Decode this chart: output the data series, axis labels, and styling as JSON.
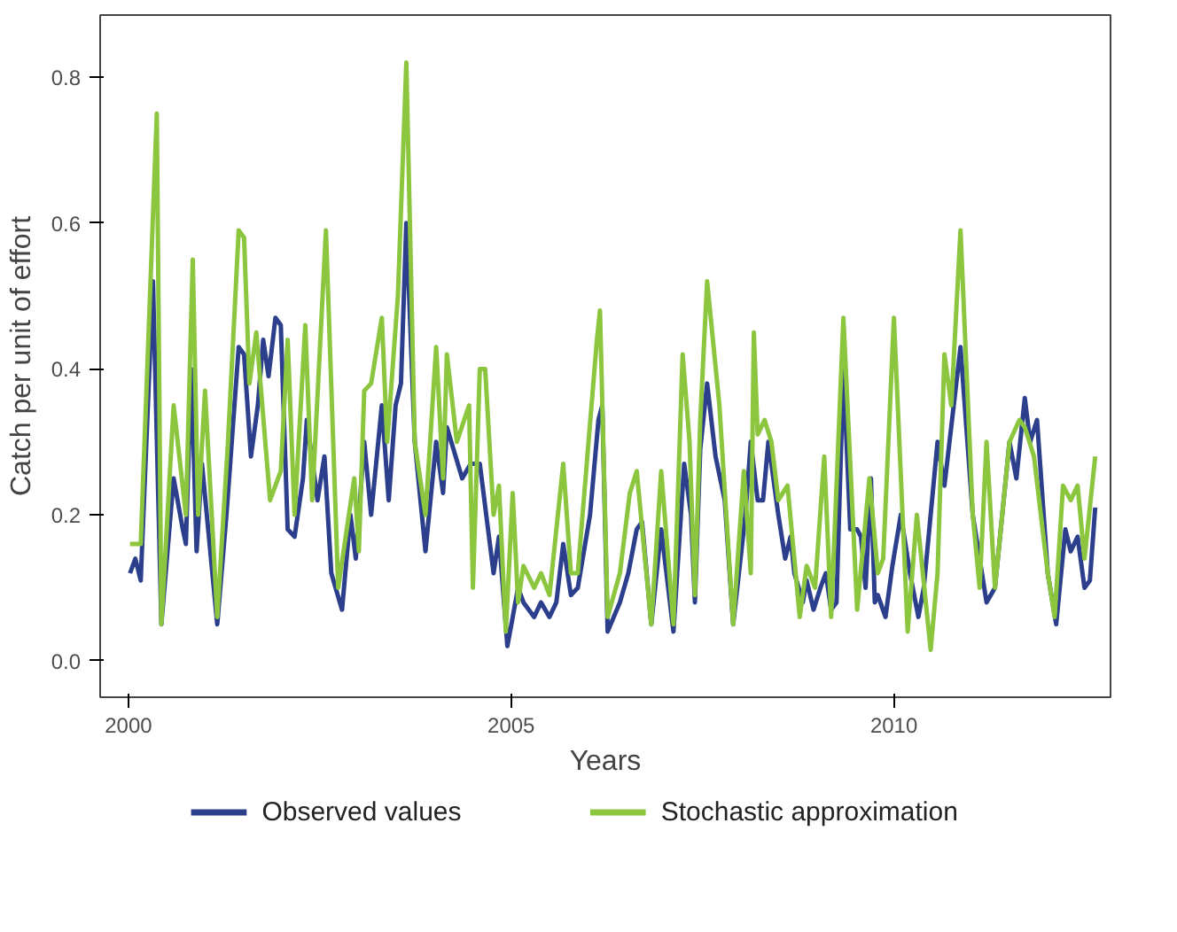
{
  "chart_data": {
    "type": "line",
    "xlabel": "Years",
    "ylabel": "Catch per unit of effort",
    "xlim": [
      1999.63,
      2012.83
    ],
    "ylim": [
      -0.05,
      0.885
    ],
    "xticks": [
      2000,
      2005,
      2010
    ],
    "yticks": [
      {
        "value": 0,
        "label": "0.0"
      },
      0.2,
      0.4,
      0.6,
      0.8
    ],
    "grid": false,
    "legend": "bottom",
    "marker": "none",
    "line_style": "solid",
    "series": [
      {
        "name": "Observed values",
        "color": "#2b3f8c",
        "x": [
          2000.02,
          2000.09,
          2000.16,
          2000.32,
          2000.43,
          2000.59,
          2000.71,
          2000.75,
          2000.82,
          2000.89,
          2000.96,
          2001.16,
          2001.28,
          2001.44,
          2001.51,
          2001.6,
          2001.69,
          2001.76,
          2001.83,
          2001.92,
          2001.99,
          2002.08,
          2002.17,
          2002.28,
          2002.33,
          2002.47,
          2002.56,
          2002.65,
          2002.79,
          2002.9,
          2002.97,
          2003.08,
          2003.17,
          2003.31,
          2003.4,
          2003.49,
          2003.56,
          2003.63,
          2003.74,
          2003.88,
          2004.02,
          2004.11,
          2004.16,
          2004.36,
          2004.47,
          2004.59,
          2004.77,
          2004.84,
          2004.95,
          2005.09,
          2005.16,
          2005.3,
          2005.39,
          2005.5,
          2005.59,
          2005.68,
          2005.78,
          2005.87,
          2006.03,
          2006.14,
          2006.19,
          2006.26,
          2006.42,
          2006.53,
          2006.64,
          2006.71,
          2006.83,
          2006.96,
          2007.12,
          2007.26,
          2007.35,
          2007.4,
          2007.47,
          2007.56,
          2007.67,
          2007.79,
          2007.9,
          2008.06,
          2008.13,
          2008.22,
          2008.29,
          2008.36,
          2008.49,
          2008.58,
          2008.65,
          2008.7,
          2008.81,
          2008.86,
          2008.95,
          2009.04,
          2009.11,
          2009.18,
          2009.25,
          2009.34,
          2009.43,
          2009.52,
          2009.57,
          2009.63,
          2009.7,
          2009.75,
          2009.79,
          2009.89,
          2009.98,
          2010.09,
          2010.21,
          2010.32,
          2010.39,
          2010.57,
          2010.66,
          2010.87,
          2011.03,
          2011.21,
          2011.32,
          2011.51,
          2011.6,
          2011.71,
          2011.78,
          2011.87,
          2012.01,
          2012.12,
          2012.24,
          2012.31,
          2012.4,
          2012.49,
          2012.56,
          2012.63
        ],
        "values": [
          0.12,
          0.14,
          0.11,
          0.52,
          0.05,
          0.25,
          0.18,
          0.16,
          0.4,
          0.15,
          0.27,
          0.05,
          0.2,
          0.43,
          0.42,
          0.28,
          0.35,
          0.44,
          0.39,
          0.47,
          0.46,
          0.18,
          0.17,
          0.25,
          0.33,
          0.22,
          0.28,
          0.12,
          0.07,
          0.2,
          0.14,
          0.3,
          0.2,
          0.35,
          0.22,
          0.35,
          0.38,
          0.6,
          0.3,
          0.15,
          0.3,
          0.23,
          0.32,
          0.25,
          0.27,
          0.27,
          0.12,
          0.17,
          0.02,
          0.1,
          0.08,
          0.06,
          0.08,
          0.06,
          0.08,
          0.16,
          0.09,
          0.1,
          0.2,
          0.33,
          0.35,
          0.04,
          0.08,
          0.12,
          0.18,
          0.19,
          0.05,
          0.18,
          0.04,
          0.27,
          0.2,
          0.08,
          0.29,
          0.38,
          0.28,
          0.22,
          0.05,
          0.2,
          0.3,
          0.22,
          0.22,
          0.3,
          0.2,
          0.14,
          0.17,
          0.12,
          0.08,
          0.11,
          0.07,
          0.1,
          0.12,
          0.07,
          0.08,
          0.4,
          0.18,
          0.18,
          0.17,
          0.1,
          0.25,
          0.08,
          0.09,
          0.06,
          0.13,
          0.2,
          0.12,
          0.06,
          0.1,
          0.3,
          0.24,
          0.43,
          0.2,
          0.08,
          0.1,
          0.3,
          0.25,
          0.36,
          0.3,
          0.33,
          0.12,
          0.05,
          0.18,
          0.15,
          0.17,
          0.1,
          0.11,
          0.21
        ]
      },
      {
        "name": "Stochastic approximation",
        "color": "#8cc63f",
        "x": [
          2000.02,
          2000.16,
          2000.37,
          2000.43,
          2000.59,
          2000.75,
          2000.84,
          2000.91,
          2001.0,
          2001.16,
          2001.3,
          2001.44,
          2001.51,
          2001.58,
          2001.67,
          2001.85,
          2001.99,
          2002.08,
          2002.17,
          2002.31,
          2002.4,
          2002.58,
          2002.74,
          2002.95,
          2003.01,
          2003.08,
          2003.17,
          2003.31,
          2003.38,
          2003.52,
          2003.63,
          2003.74,
          2003.88,
          2004.02,
          2004.11,
          2004.16,
          2004.29,
          2004.45,
          2004.5,
          2004.59,
          2004.66,
          2004.77,
          2004.84,
          2004.93,
          2005.02,
          2005.09,
          2005.16,
          2005.3,
          2005.39,
          2005.5,
          2005.68,
          2005.78,
          2005.87,
          2006.12,
          2006.16,
          2006.26,
          2006.42,
          2006.55,
          2006.64,
          2006.83,
          2006.96,
          2007.12,
          2007.24,
          2007.33,
          2007.4,
          2007.47,
          2007.56,
          2007.72,
          2007.9,
          2008.04,
          2008.13,
          2008.17,
          2008.22,
          2008.31,
          2008.4,
          2008.49,
          2008.61,
          2008.77,
          2008.86,
          2008.97,
          2009.09,
          2009.18,
          2009.34,
          2009.52,
          2009.68,
          2009.79,
          2009.86,
          2010.0,
          2010.18,
          2010.3,
          2010.48,
          2010.57,
          2010.66,
          2010.75,
          2010.87,
          2011.03,
          2011.12,
          2011.21,
          2011.32,
          2011.51,
          2011.64,
          2011.71,
          2011.83,
          2012.01,
          2012.1,
          2012.21,
          2012.31,
          2012.4,
          2012.49,
          2012.63
        ],
        "values": [
          0.16,
          0.16,
          0.75,
          0.05,
          0.35,
          0.2,
          0.55,
          0.2,
          0.37,
          0.06,
          0.3,
          0.59,
          0.58,
          0.38,
          0.45,
          0.22,
          0.26,
          0.44,
          0.2,
          0.46,
          0.22,
          0.59,
          0.1,
          0.25,
          0.15,
          0.37,
          0.38,
          0.47,
          0.3,
          0.5,
          0.82,
          0.3,
          0.2,
          0.43,
          0.25,
          0.42,
          0.3,
          0.35,
          0.1,
          0.4,
          0.4,
          0.2,
          0.24,
          0.04,
          0.23,
          0.08,
          0.13,
          0.1,
          0.12,
          0.09,
          0.27,
          0.12,
          0.12,
          0.44,
          0.48,
          0.06,
          0.12,
          0.23,
          0.26,
          0.05,
          0.26,
          0.05,
          0.42,
          0.3,
          0.09,
          0.33,
          0.52,
          0.35,
          0.05,
          0.26,
          0.12,
          0.45,
          0.31,
          0.33,
          0.3,
          0.22,
          0.24,
          0.06,
          0.13,
          0.1,
          0.28,
          0.06,
          0.47,
          0.07,
          0.25,
          0.12,
          0.14,
          0.47,
          0.04,
          0.2,
          0.015,
          0.12,
          0.42,
          0.35,
          0.59,
          0.2,
          0.1,
          0.3,
          0.1,
          0.3,
          0.33,
          0.32,
          0.28,
          0.12,
          0.06,
          0.24,
          0.22,
          0.24,
          0.14,
          0.28
        ]
      }
    ]
  }
}
